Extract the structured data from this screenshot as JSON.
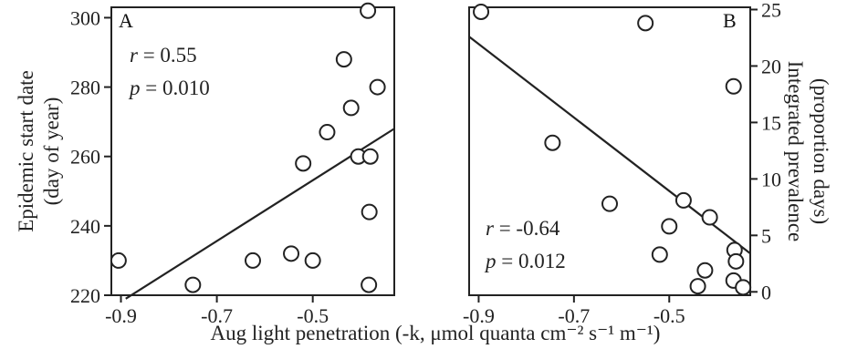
{
  "chart_data": [
    {
      "type": "scatter",
      "panel_label": "A",
      "ylabel_line1": "Epidemic start date",
      "ylabel_line2": "(day of year)",
      "ylim": [
        220,
        303
      ],
      "xlim": [
        -0.92,
        -0.33
      ],
      "yticks": [
        220,
        240,
        260,
        280,
        300
      ],
      "xticks": [
        -0.9,
        -0.7,
        -0.5
      ],
      "xtick_labels": [
        "-0.9",
        "-0.7",
        "-0.5"
      ],
      "y_axis_side": "left",
      "stat_r_label": "r",
      "stat_r_value": " = 0.55",
      "stat_p_label": "p",
      "stat_p_value": " = 0.010",
      "points": [
        {
          "x": -0.905,
          "y": 230
        },
        {
          "x": -0.75,
          "y": 223
        },
        {
          "x": -0.625,
          "y": 230
        },
        {
          "x": -0.545,
          "y": 232
        },
        {
          "x": -0.5,
          "y": 230
        },
        {
          "x": -0.52,
          "y": 258
        },
        {
          "x": -0.47,
          "y": 267
        },
        {
          "x": -0.435,
          "y": 288
        },
        {
          "x": -0.42,
          "y": 274
        },
        {
          "x": -0.405,
          "y": 260
        },
        {
          "x": -0.385,
          "y": 302
        },
        {
          "x": -0.38,
          "y": 260
        },
        {
          "x": -0.382,
          "y": 244
        },
        {
          "x": -0.383,
          "y": 223
        },
        {
          "x": -0.365,
          "y": 280
        }
      ],
      "fit_line": [
        {
          "x": -0.89,
          "y": 219
        },
        {
          "x": -0.33,
          "y": 268
        }
      ]
    },
    {
      "type": "scatter",
      "panel_label": "B",
      "ylabel_line1": "Integrated prevalence",
      "ylabel_line2": "(proportion days)",
      "ylim": [
        -0.3,
        25.2
      ],
      "xlim": [
        -0.92,
        -0.33
      ],
      "yticks": [
        0,
        5,
        10,
        15,
        20,
        25
      ],
      "xticks": [
        -0.9,
        -0.7,
        -0.5
      ],
      "xtick_labels": [
        "-0.9",
        "-0.7",
        "-0.5"
      ],
      "y_axis_side": "right",
      "stat_r_label": "r",
      "stat_r_value": " = -0.64",
      "stat_p_label": "p",
      "stat_p_value": " = 0.012",
      "points": [
        {
          "x": -0.895,
          "y": 24.8
        },
        {
          "x": -0.55,
          "y": 23.8
        },
        {
          "x": -0.745,
          "y": 13.2
        },
        {
          "x": -0.625,
          "y": 7.8
        },
        {
          "x": -0.47,
          "y": 8.1
        },
        {
          "x": -0.415,
          "y": 6.6
        },
        {
          "x": -0.5,
          "y": 5.8
        },
        {
          "x": -0.52,
          "y": 3.3
        },
        {
          "x": -0.425,
          "y": 1.9
        },
        {
          "x": -0.44,
          "y": 0.5
        },
        {
          "x": -0.365,
          "y": 18.2
        },
        {
          "x": -0.363,
          "y": 3.7
        },
        {
          "x": -0.36,
          "y": 2.7
        },
        {
          "x": -0.365,
          "y": 1.0
        },
        {
          "x": -0.345,
          "y": 0.4
        }
      ],
      "fit_line": [
        {
          "x": -0.92,
          "y": 22.6
        },
        {
          "x": -0.33,
          "y": 3.4
        }
      ]
    }
  ],
  "shared_xlabel": "Aug light penetration (-k, μmol quanta cm⁻² s⁻¹ m⁻¹)"
}
